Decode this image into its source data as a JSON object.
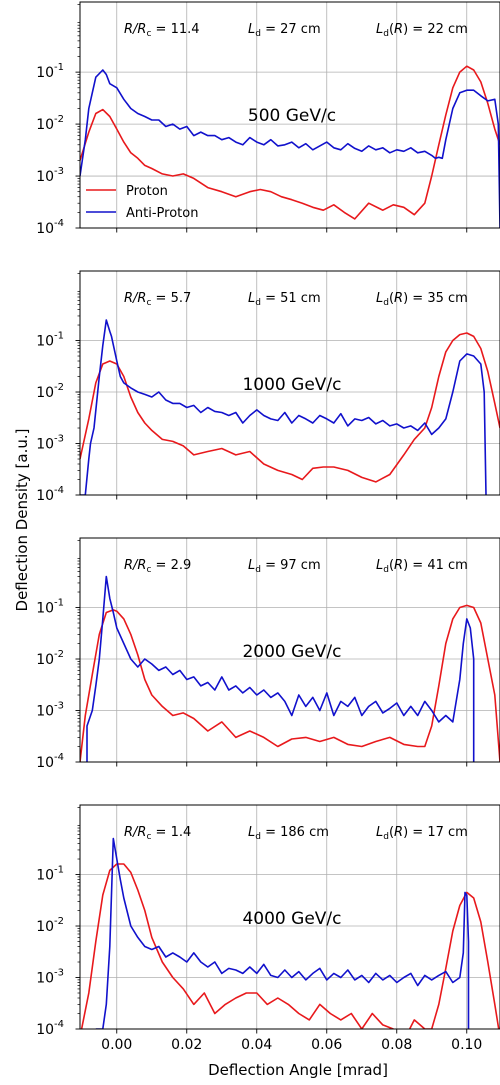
{
  "figure": {
    "ylabel": "Deflection Density [a.u.]",
    "xlabel": "Deflection Angle [mrad]",
    "x_tick_labels": [
      "0.00",
      "0.02",
      "0.04",
      "0.06",
      "0.08",
      "0.10"
    ],
    "y_tick_labels": [
      "10",
      "10",
      "10",
      "10"
    ],
    "y_tick_exponents": [
      "-4",
      "-3",
      "-2",
      "-1"
    ],
    "legend": {
      "proton": "Proton",
      "antiproton": "Anti-Proton"
    },
    "colors": {
      "proton": "#e8191c",
      "antiproton": "#1111cc",
      "grid": "#b0b0b0"
    }
  },
  "chart_data": [
    {
      "type": "line",
      "title": "500 GeV/c",
      "xlim": [
        -0.0105,
        0.1095
      ],
      "ylim_log10": [
        -4,
        0.35
      ],
      "yscale": "log",
      "grid": true,
      "legend_position": "lower-left",
      "annotations": {
        "r_rc": "R/R_c = 11.4",
        "ld": "L_d = 27 cm",
        "ldr": "L_d(R) = 22 cm"
      },
      "series": [
        {
          "name": "Proton",
          "x": [
            -0.0105,
            -0.008,
            -0.006,
            -0.004,
            -0.002,
            0.0,
            0.002,
            0.004,
            0.006,
            0.008,
            0.01,
            0.013,
            0.016,
            0.019,
            0.022,
            0.026,
            0.03,
            0.034,
            0.038,
            0.041,
            0.044,
            0.047,
            0.05,
            0.053,
            0.056,
            0.059,
            0.062,
            0.065,
            0.068,
            0.072,
            0.076,
            0.079,
            0.082,
            0.085,
            0.088,
            0.09,
            0.092,
            0.094,
            0.096,
            0.098,
            0.1,
            0.102,
            0.104,
            0.106,
            0.108,
            0.1095
          ],
          "y": [
            0.002,
            0.007,
            0.016,
            0.019,
            0.014,
            0.008,
            0.0045,
            0.0028,
            0.0022,
            0.0016,
            0.0014,
            0.0011,
            0.001,
            0.0011,
            0.0009,
            0.0006,
            0.0005,
            0.0004,
            0.0005,
            0.00055,
            0.0005,
            0.0004,
            0.00035,
            0.0003,
            0.00025,
            0.00022,
            0.00028,
            0.0002,
            0.00015,
            0.0003,
            0.00022,
            0.00028,
            0.00025,
            0.00018,
            0.0003,
            0.001,
            0.004,
            0.015,
            0.05,
            0.1,
            0.13,
            0.11,
            0.065,
            0.025,
            0.008,
            0.004
          ]
        },
        {
          "name": "Anti-Proton",
          "x": [
            -0.0105,
            -0.009,
            -0.008,
            -0.007,
            -0.006,
            -0.004,
            -0.003,
            -0.002,
            0.0,
            0.002,
            0.004,
            0.006,
            0.008,
            0.01,
            0.012,
            0.014,
            0.016,
            0.018,
            0.02,
            0.022,
            0.024,
            0.026,
            0.028,
            0.03,
            0.032,
            0.034,
            0.036,
            0.038,
            0.04,
            0.042,
            0.044,
            0.046,
            0.048,
            0.05,
            0.052,
            0.054,
            0.056,
            0.058,
            0.06,
            0.062,
            0.064,
            0.066,
            0.068,
            0.07,
            0.072,
            0.074,
            0.076,
            0.078,
            0.08,
            0.082,
            0.084,
            0.086,
            0.088,
            0.09,
            0.091,
            0.092,
            0.093,
            0.094,
            0.096,
            0.098,
            0.1,
            0.102,
            0.104,
            0.106,
            0.108,
            0.109,
            0.1095
          ],
          "y": [
            0.001,
            0.005,
            0.02,
            0.04,
            0.08,
            0.11,
            0.09,
            0.06,
            0.05,
            0.03,
            0.02,
            0.016,
            0.014,
            0.012,
            0.012,
            0.009,
            0.01,
            0.008,
            0.009,
            0.006,
            0.007,
            0.006,
            0.006,
            0.005,
            0.0055,
            0.0045,
            0.004,
            0.0055,
            0.0045,
            0.004,
            0.005,
            0.0038,
            0.004,
            0.0045,
            0.0035,
            0.0042,
            0.0032,
            0.0038,
            0.0045,
            0.0035,
            0.0032,
            0.0042,
            0.0034,
            0.003,
            0.0038,
            0.0032,
            0.0035,
            0.0028,
            0.0032,
            0.003,
            0.0035,
            0.0028,
            0.003,
            0.0025,
            0.0022,
            0.0023,
            0.0022,
            0.005,
            0.02,
            0.04,
            0.045,
            0.045,
            0.035,
            0.028,
            0.03,
            0.01,
            0.0001
          ]
        }
      ]
    },
    {
      "type": "line",
      "title": "1000 GeV/c",
      "xlim": [
        -0.0105,
        0.1095
      ],
      "ylim_log10": [
        -4,
        0.35
      ],
      "yscale": "log",
      "grid": true,
      "annotations": {
        "r_rc": "R/R_c = 5.7",
        "ld": "L_d = 51 cm",
        "ldr": "L_d(R) = 35 cm"
      },
      "series": [
        {
          "name": "Proton",
          "x": [
            -0.0105,
            -0.008,
            -0.006,
            -0.004,
            -0.002,
            0.0,
            0.002,
            0.004,
            0.006,
            0.008,
            0.01,
            0.013,
            0.016,
            0.019,
            0.022,
            0.026,
            0.03,
            0.034,
            0.038,
            0.042,
            0.046,
            0.05,
            0.053,
            0.056,
            0.059,
            0.062,
            0.066,
            0.07,
            0.074,
            0.078,
            0.082,
            0.085,
            0.088,
            0.09,
            0.092,
            0.094,
            0.096,
            0.098,
            0.1,
            0.102,
            0.104,
            0.106,
            0.108,
            0.1095
          ],
          "y": [
            0.0005,
            0.003,
            0.015,
            0.035,
            0.04,
            0.035,
            0.02,
            0.008,
            0.004,
            0.0025,
            0.0018,
            0.0012,
            0.0011,
            0.0009,
            0.0006,
            0.0007,
            0.0008,
            0.0006,
            0.0007,
            0.0004,
            0.0003,
            0.00025,
            0.0002,
            0.00033,
            0.00035,
            0.00035,
            0.0003,
            0.00022,
            0.00018,
            0.00025,
            0.0006,
            0.0012,
            0.002,
            0.005,
            0.02,
            0.06,
            0.1,
            0.13,
            0.14,
            0.12,
            0.07,
            0.025,
            0.006,
            0.002
          ]
        },
        {
          "name": "Anti-Proton",
          "x": [
            -0.0105,
            -0.009,
            -0.008,
            -0.0075,
            -0.0065,
            -0.005,
            -0.004,
            -0.003,
            -0.002,
            -0.0015,
            0.0,
            0.001,
            0.002,
            0.004,
            0.006,
            0.008,
            0.01,
            0.012,
            0.014,
            0.016,
            0.018,
            0.02,
            0.022,
            0.024,
            0.026,
            0.028,
            0.03,
            0.032,
            0.034,
            0.036,
            0.038,
            0.04,
            0.042,
            0.044,
            0.046,
            0.048,
            0.05,
            0.052,
            0.054,
            0.056,
            0.058,
            0.06,
            0.062,
            0.064,
            0.066,
            0.068,
            0.07,
            0.072,
            0.074,
            0.076,
            0.078,
            0.08,
            0.082,
            0.084,
            0.086,
            0.088,
            0.09,
            0.092,
            0.094,
            0.096,
            0.098,
            0.1,
            0.102,
            0.104,
            0.105,
            0.1055
          ],
          "y": [
            0.0001,
            0.0001,
            0.0005,
            0.001,
            0.002,
            0.02,
            0.08,
            0.25,
            0.15,
            0.12,
            0.04,
            0.02,
            0.015,
            0.012,
            0.01,
            0.009,
            0.008,
            0.01,
            0.007,
            0.006,
            0.006,
            0.005,
            0.0055,
            0.004,
            0.005,
            0.0042,
            0.004,
            0.0035,
            0.004,
            0.0025,
            0.0035,
            0.0045,
            0.0035,
            0.003,
            0.0028,
            0.004,
            0.0025,
            0.0035,
            0.003,
            0.0025,
            0.0035,
            0.003,
            0.0025,
            0.0038,
            0.0022,
            0.003,
            0.0028,
            0.0032,
            0.0024,
            0.0028,
            0.0022,
            0.0024,
            0.002,
            0.0022,
            0.0018,
            0.0025,
            0.0015,
            0.002,
            0.003,
            0.01,
            0.04,
            0.055,
            0.05,
            0.035,
            0.01,
            0.0001
          ]
        }
      ]
    },
    {
      "type": "line",
      "title": "2000 GeV/c",
      "xlim": [
        -0.0105,
        0.1095
      ],
      "ylim_log10": [
        -4,
        0.35
      ],
      "yscale": "log",
      "grid": true,
      "annotations": {
        "r_rc": "R/R_c = 2.9",
        "ld": "L_d = 97 cm",
        "ldr": "L_d(R) = 41 cm"
      },
      "series": [
        {
          "name": "Proton",
          "x": [
            -0.0105,
            -0.009,
            -0.007,
            -0.005,
            -0.003,
            -0.001,
            0.0,
            0.002,
            0.004,
            0.006,
            0.008,
            0.01,
            0.013,
            0.016,
            0.019,
            0.022,
            0.026,
            0.03,
            0.034,
            0.038,
            0.042,
            0.046,
            0.05,
            0.054,
            0.058,
            0.062,
            0.066,
            0.07,
            0.074,
            0.078,
            0.082,
            0.086,
            0.088,
            0.09,
            0.092,
            0.094,
            0.096,
            0.098,
            0.1,
            0.102,
            0.104,
            0.106,
            0.108,
            0.1095
          ],
          "y": [
            0.0001,
            0.0008,
            0.005,
            0.03,
            0.08,
            0.09,
            0.085,
            0.06,
            0.03,
            0.012,
            0.004,
            0.002,
            0.0012,
            0.0008,
            0.0009,
            0.0007,
            0.0004,
            0.0006,
            0.0003,
            0.0004,
            0.0003,
            0.0002,
            0.00028,
            0.0003,
            0.00025,
            0.0003,
            0.00022,
            0.0002,
            0.00025,
            0.0003,
            0.00022,
            0.0002,
            0.0002,
            0.0005,
            0.003,
            0.02,
            0.06,
            0.1,
            0.11,
            0.1,
            0.05,
            0.01,
            0.002,
            0.0001
          ]
        },
        {
          "name": "Anti-Proton",
          "x": [
            -0.0085,
            -0.0085,
            -0.007,
            -0.006,
            -0.005,
            -0.004,
            -0.003,
            -0.002,
            -0.001,
            0.0,
            0.002,
            0.004,
            0.006,
            0.008,
            0.01,
            0.012,
            0.014,
            0.016,
            0.018,
            0.02,
            0.022,
            0.024,
            0.026,
            0.028,
            0.03,
            0.032,
            0.034,
            0.036,
            0.038,
            0.04,
            0.042,
            0.044,
            0.046,
            0.048,
            0.05,
            0.052,
            0.054,
            0.056,
            0.058,
            0.06,
            0.062,
            0.064,
            0.066,
            0.068,
            0.07,
            0.072,
            0.074,
            0.076,
            0.078,
            0.08,
            0.082,
            0.084,
            0.086,
            0.088,
            0.09,
            0.092,
            0.094,
            0.096,
            0.098,
            0.099,
            0.1,
            0.101,
            0.102,
            0.102
          ],
          "y": [
            0.0001,
            0.0005,
            0.001,
            0.003,
            0.01,
            0.06,
            0.4,
            0.15,
            0.08,
            0.04,
            0.02,
            0.01,
            0.007,
            0.01,
            0.008,
            0.006,
            0.007,
            0.005,
            0.006,
            0.004,
            0.0045,
            0.003,
            0.0035,
            0.0025,
            0.0045,
            0.0025,
            0.003,
            0.0022,
            0.0028,
            0.002,
            0.0025,
            0.0018,
            0.0022,
            0.0015,
            0.0008,
            0.002,
            0.0012,
            0.0018,
            0.001,
            0.0022,
            0.0008,
            0.0015,
            0.0012,
            0.0018,
            0.0008,
            0.0012,
            0.0015,
            0.0009,
            0.0011,
            0.0014,
            0.0008,
            0.0012,
            0.0008,
            0.0015,
            0.001,
            0.0006,
            0.0008,
            0.0006,
            0.004,
            0.02,
            0.06,
            0.04,
            0.01,
            0.0001
          ]
        }
      ]
    },
    {
      "type": "line",
      "title": "4000 GeV/c",
      "xlim": [
        -0.0105,
        0.1095
      ],
      "ylim_log10": [
        -4,
        0.35
      ],
      "yscale": "log",
      "grid": true,
      "annotations": {
        "r_rc": "R/R_c = 1.4",
        "ld": "L_d = 186 cm",
        "ldr": "L_d(R) = 17 cm"
      },
      "series": [
        {
          "name": "Proton",
          "x": [
            -0.0105,
            -0.008,
            -0.006,
            -0.004,
            -0.002,
            0.0,
            0.002,
            0.004,
            0.006,
            0.008,
            0.01,
            0.013,
            0.016,
            0.019,
            0.022,
            0.025,
            0.028,
            0.031,
            0.034,
            0.037,
            0.04,
            0.043,
            0.046,
            0.049,
            0.052,
            0.055,
            0.058,
            0.061,
            0.064,
            0.067,
            0.07,
            0.073,
            0.076,
            0.079,
            0.082,
            0.085,
            0.088,
            0.09,
            0.092,
            0.094,
            0.096,
            0.098,
            0.1,
            0.102,
            0.104,
            0.106,
            0.108,
            0.1095
          ],
          "y": [
            7e-05,
            0.0005,
            0.005,
            0.04,
            0.12,
            0.16,
            0.16,
            0.11,
            0.05,
            0.02,
            0.006,
            0.002,
            0.001,
            0.0006,
            0.0003,
            0.0005,
            0.0002,
            0.0003,
            0.0004,
            0.0005,
            0.0005,
            0.0003,
            0.0004,
            0.0003,
            0.0002,
            0.00015,
            0.0003,
            0.0002,
            0.00015,
            0.0002,
            0.0001,
            0.0002,
            0.00012,
            0.0001,
            6e-05,
            0.00015,
            0.0001,
            0.0001,
            0.0003,
            0.0015,
            0.008,
            0.025,
            0.045,
            0.035,
            0.012,
            0.002,
            0.0003,
            7e-05
          ]
        },
        {
          "name": "Anti-Proton",
          "x": [
            -0.006,
            -0.004,
            -0.003,
            -0.002,
            -0.001,
            0.0,
            0.001,
            0.002,
            0.004,
            0.006,
            0.008,
            0.01,
            0.012,
            0.014,
            0.016,
            0.018,
            0.02,
            0.022,
            0.024,
            0.026,
            0.028,
            0.03,
            0.032,
            0.034,
            0.036,
            0.038,
            0.04,
            0.042,
            0.044,
            0.046,
            0.048,
            0.05,
            0.052,
            0.054,
            0.056,
            0.058,
            0.06,
            0.062,
            0.064,
            0.066,
            0.068,
            0.07,
            0.072,
            0.074,
            0.076,
            0.078,
            0.08,
            0.082,
            0.084,
            0.086,
            0.088,
            0.09,
            0.092,
            0.094,
            0.096,
            0.098,
            0.099,
            0.0995,
            0.1,
            0.1005,
            0.1005
          ],
          "y": [
            0.0001,
            0.0001,
            0.0003,
            0.004,
            0.5,
            0.2,
            0.08,
            0.035,
            0.01,
            0.006,
            0.004,
            0.0035,
            0.004,
            0.0025,
            0.003,
            0.0025,
            0.002,
            0.003,
            0.002,
            0.0016,
            0.002,
            0.0012,
            0.0015,
            0.0014,
            0.0012,
            0.0016,
            0.0012,
            0.0018,
            0.0011,
            0.001,
            0.0014,
            0.001,
            0.0013,
            0.0009,
            0.0012,
            0.0015,
            0.0009,
            0.0012,
            0.001,
            0.0014,
            0.0009,
            0.0011,
            0.0008,
            0.0012,
            0.0009,
            0.0011,
            0.0008,
            0.001,
            0.0012,
            0.0007,
            0.0011,
            0.0009,
            0.0011,
            0.0013,
            0.0008,
            0.001,
            0.003,
            0.045,
            0.04,
            0.005,
            0.0001
          ]
        }
      ]
    }
  ]
}
